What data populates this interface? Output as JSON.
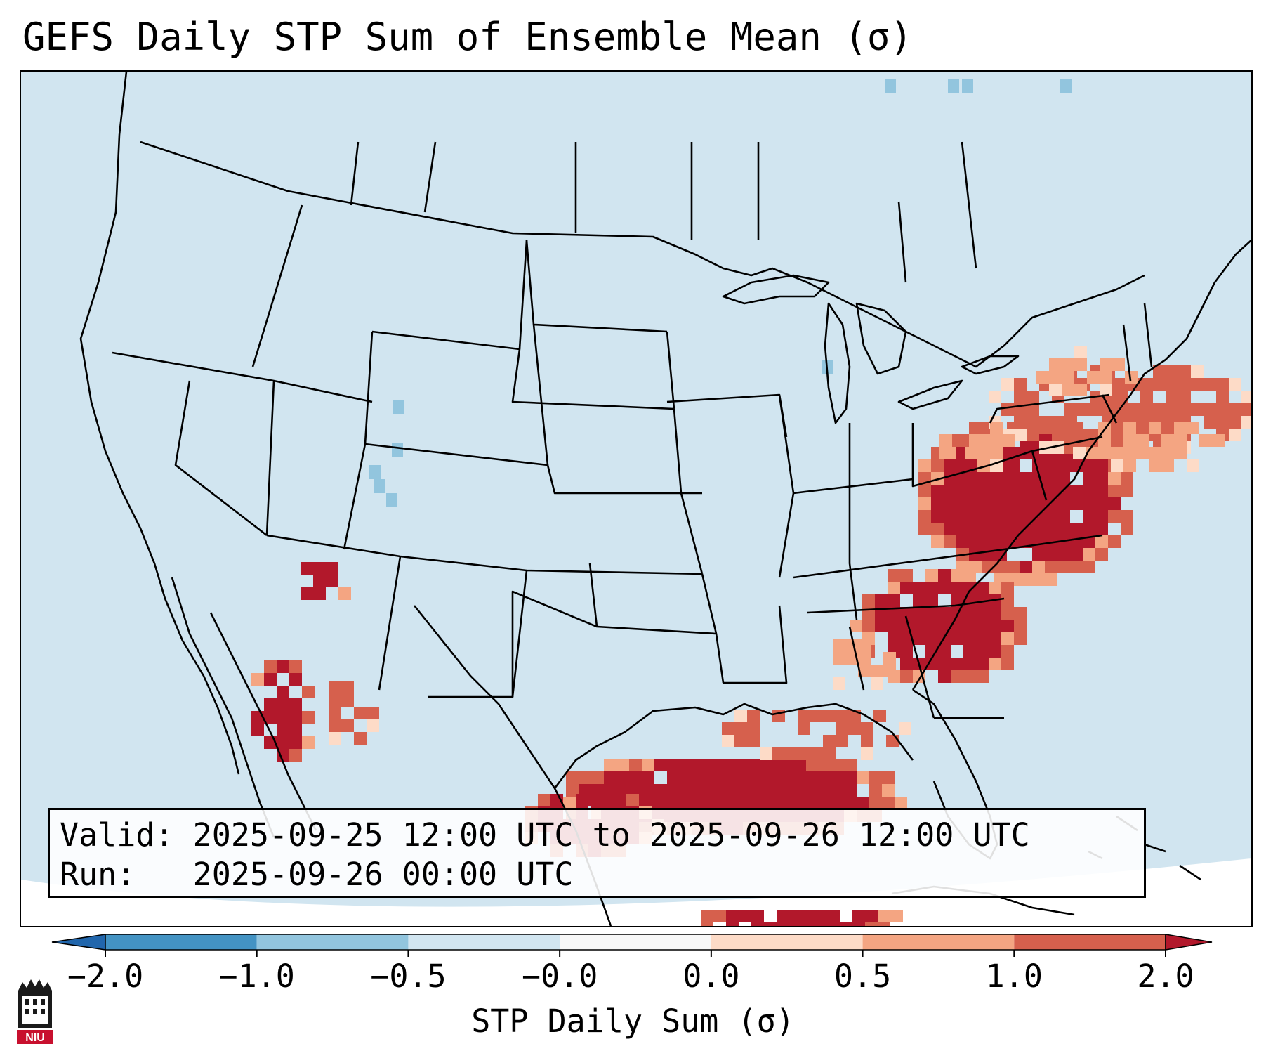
{
  "title": "GEFS Daily STP Sum of Ensemble Mean (σ)",
  "info": {
    "valid_label": "Valid:",
    "valid_value": "2025-09-25 12:00 UTC to 2025-09-26 12:00 UTC",
    "run_label": "Run:",
    "run_value": "2025-09-26 00:00 UTC"
  },
  "colorbar": {
    "label": "STP Daily Sum (σ)",
    "ticks": [
      "−2.0",
      "−1.0",
      "−0.5",
      "−0.0",
      "0.0",
      "0.5",
      "1.0",
      "2.0"
    ],
    "colors": [
      "#4393c3",
      "#92c5de",
      "#d1e5f0",
      "#f7f7f7",
      "#fddbc7",
      "#f4a582",
      "#d6604d",
      "#b2182b"
    ],
    "extend_low_color": "#2166ac",
    "extend_high_color": "#b2182b"
  },
  "map": {
    "ocean_color": "#d1e5f0",
    "strong_positive_color": "#b2182b",
    "moderate_positive_color": "#d6604d",
    "weak_positive_color": "#f4a582",
    "faint_positive_color": "#fddbc7",
    "negative_color": "#92c5de",
    "border_color": "#000000"
  },
  "logo": {
    "text": "NIU",
    "icon": "niu-building-icon"
  }
}
